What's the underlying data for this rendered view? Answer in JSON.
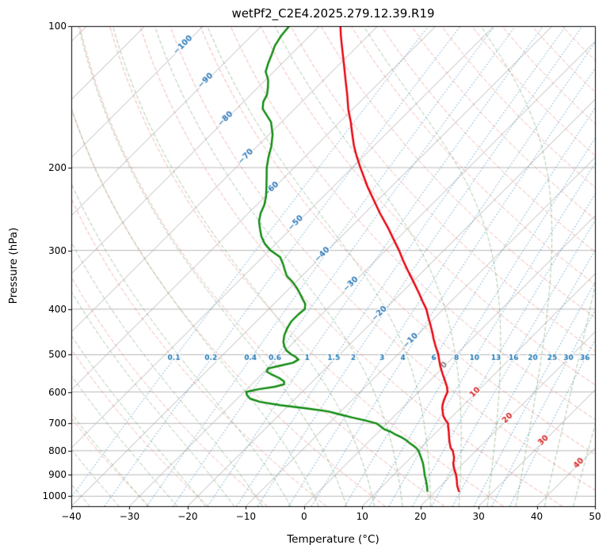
{
  "chart_data": {
    "type": "line",
    "subtype": "skew-t-log-p-sounding",
    "title": "wetPf2_C2E4.2025.279.12.39.R19",
    "xlabel": "Temperature (°C)",
    "ylabel": "Pressure (hPa)",
    "xlim": [
      -40,
      50
    ],
    "plim": [
      100,
      1050
    ],
    "grid": true,
    "x_tick_values": [
      -40,
      -30,
      -20,
      -10,
      0,
      10,
      20,
      30,
      40,
      50
    ],
    "x_tick_labels": [
      "−40",
      "−30",
      "−20",
      "−10",
      "0",
      "10",
      "20",
      "30",
      "40",
      "50"
    ],
    "y_tick_values": [
      100,
      200,
      300,
      400,
      500,
      600,
      700,
      800,
      900,
      1000
    ],
    "y_tick_labels": [
      "100",
      "200",
      "300",
      "400",
      "500",
      "600",
      "700",
      "800",
      "900",
      "1000"
    ],
    "isotherms": {
      "start": -120,
      "end": 50,
      "step": 10
    },
    "isotherm_labels": [
      {
        "value": -100,
        "text": "−100"
      },
      {
        "value": -90,
        "text": "−90"
      },
      {
        "value": -80,
        "text": "−80"
      },
      {
        "value": -70,
        "text": "−70"
      },
      {
        "value": -60,
        "text": "−60"
      },
      {
        "value": -50,
        "text": "−50"
      },
      {
        "value": -40,
        "text": "−40"
      },
      {
        "value": -30,
        "text": "−30"
      },
      {
        "value": -20,
        "text": "−20"
      },
      {
        "value": -10,
        "text": "−10"
      },
      {
        "value": 0,
        "text": "0"
      },
      {
        "value": 10,
        "text": "10"
      },
      {
        "value": 20,
        "text": "20"
      },
      {
        "value": 30,
        "text": "30"
      },
      {
        "value": 40,
        "text": "40"
      }
    ],
    "dry_adiabats": {
      "start": -30,
      "end": 180,
      "step": 10
    },
    "moist_adiabats": {
      "start": -40,
      "end": 45,
      "step": 5
    },
    "mixing_ratios": [
      0.1,
      0.2,
      0.4,
      0.6,
      1,
      1.5,
      2,
      3,
      4,
      6,
      8,
      10,
      13,
      16,
      20,
      25,
      30,
      36
    ],
    "mixing_ratio_labels": [
      "0.1",
      "0.2",
      "0.4",
      "0.6",
      "1",
      "1.5",
      "2",
      "3",
      "4",
      "6",
      "8",
      "10",
      "13",
      "16",
      "20",
      "25",
      "30",
      "36"
    ],
    "colors": {
      "temperature": "#e8000b",
      "dewpoint": "#0e8a0e",
      "grid": "#b0b0b0",
      "dry_adiabat": "rgba(229,108,97,0.5)",
      "moist_adiabat": "rgba(84,150,84,0.5)",
      "mixing_line": "rgba(31,119,180,0.75)",
      "isotherm_label_neg": "#2f7ab8",
      "isotherm_label_zero": "#808080",
      "isotherm_label_pos": "#d62728",
      "axis": "#000000"
    },
    "series": [
      {
        "name": "temperature",
        "units": {
          "pressure": "hPa",
          "temperature": "°C"
        },
        "points": [
          [
            975,
            24
          ],
          [
            950,
            22.8
          ],
          [
            925,
            21.8
          ],
          [
            900,
            20.7
          ],
          [
            875,
            19.4
          ],
          [
            850,
            18.2
          ],
          [
            840,
            17.9
          ],
          [
            825,
            17.3
          ],
          [
            800,
            16
          ],
          [
            790,
            15.2
          ],
          [
            775,
            14.4
          ],
          [
            760,
            13.6
          ],
          [
            750,
            13.1
          ],
          [
            730,
            12.1
          ],
          [
            710,
            11
          ],
          [
            700,
            10.5
          ],
          [
            690,
            9.6
          ],
          [
            675,
            8.4
          ],
          [
            660,
            7.5
          ],
          [
            650,
            6.9
          ],
          [
            640,
            6.4
          ],
          [
            625,
            5.8
          ],
          [
            610,
            5.3
          ],
          [
            600,
            5
          ],
          [
            585,
            4
          ],
          [
            570,
            2.8
          ],
          [
            550,
            1.1
          ],
          [
            530,
            -0.6
          ],
          [
            515,
            -1.8
          ],
          [
            500,
            -3
          ],
          [
            480,
            -4.9
          ],
          [
            460,
            -6.8
          ],
          [
            450,
            -7.7
          ],
          [
            430,
            -9.7
          ],
          [
            415,
            -11.3
          ],
          [
            400,
            -12.9
          ],
          [
            385,
            -14.9
          ],
          [
            370,
            -16.9
          ],
          [
            350,
            -19.8
          ],
          [
            330,
            -22.9
          ],
          [
            315,
            -25.3
          ],
          [
            300,
            -27.7
          ],
          [
            285,
            -30.4
          ],
          [
            270,
            -33.2
          ],
          [
            250,
            -37.4
          ],
          [
            235,
            -40.6
          ],
          [
            220,
            -44
          ],
          [
            200,
            -48.6
          ],
          [
            190,
            -51
          ],
          [
            180,
            -53.4
          ],
          [
            170,
            -55.7
          ],
          [
            160,
            -58.1
          ],
          [
            150,
            -60.8
          ],
          [
            140,
            -63.4
          ],
          [
            130,
            -66.3
          ],
          [
            120,
            -69.4
          ],
          [
            110,
            -72.8
          ],
          [
            105,
            -74.6
          ],
          [
            100,
            -76.4
          ]
        ]
      },
      {
        "name": "dewpoint",
        "units": {
          "pressure": "hPa",
          "temperature": "°C"
        },
        "points": [
          [
            975,
            18.6
          ],
          [
            950,
            17.6
          ],
          [
            925,
            16.5
          ],
          [
            900,
            15.3
          ],
          [
            875,
            14.2
          ],
          [
            850,
            13
          ],
          [
            825,
            11.6
          ],
          [
            800,
            10.1
          ],
          [
            790,
            9.3
          ],
          [
            780,
            8.3
          ],
          [
            770,
            7.2
          ],
          [
            760,
            6.2
          ],
          [
            750,
            5
          ],
          [
            740,
            3.5
          ],
          [
            730,
            2.2
          ],
          [
            720,
            0.5
          ],
          [
            710,
            -0.6
          ],
          [
            700,
            -1.8
          ],
          [
            690,
            -4.2
          ],
          [
            680,
            -7
          ],
          [
            670,
            -9.6
          ],
          [
            660,
            -12.2
          ],
          [
            650,
            -16.5
          ],
          [
            640,
            -21.5
          ],
          [
            630,
            -25.5
          ],
          [
            620,
            -27.8
          ],
          [
            610,
            -28.9
          ],
          [
            600,
            -29.6
          ],
          [
            592,
            -28
          ],
          [
            585,
            -25.6
          ],
          [
            578,
            -24.4
          ],
          [
            570,
            -24.9
          ],
          [
            560,
            -26.4
          ],
          [
            550,
            -28.4
          ],
          [
            543,
            -29.6
          ],
          [
            535,
            -29.9
          ],
          [
            528,
            -28.4
          ],
          [
            520,
            -26.6
          ],
          [
            512,
            -26.2
          ],
          [
            505,
            -27.2
          ],
          [
            500,
            -28.2
          ],
          [
            490,
            -29.8
          ],
          [
            480,
            -30.9
          ],
          [
            470,
            -31.8
          ],
          [
            455,
            -32.8
          ],
          [
            440,
            -33.5
          ],
          [
            425,
            -34
          ],
          [
            410,
            -34
          ],
          [
            400,
            -33.8
          ],
          [
            390,
            -34.6
          ],
          [
            380,
            -36
          ],
          [
            370,
            -37.4
          ],
          [
            360,
            -38.9
          ],
          [
            350,
            -40.6
          ],
          [
            340,
            -42.6
          ],
          [
            330,
            -44
          ],
          [
            320,
            -45.4
          ],
          [
            310,
            -47
          ],
          [
            300,
            -49.8
          ],
          [
            290,
            -52
          ],
          [
            280,
            -53.8
          ],
          [
            270,
            -55.3
          ],
          [
            260,
            -56.8
          ],
          [
            250,
            -57.9
          ],
          [
            240,
            -58.7
          ],
          [
            230,
            -59.9
          ],
          [
            220,
            -61.4
          ],
          [
            210,
            -63
          ],
          [
            200,
            -64.7
          ],
          [
            190,
            -66.2
          ],
          [
            180,
            -67.6
          ],
          [
            170,
            -69.4
          ],
          [
            160,
            -71.8
          ],
          [
            150,
            -75.5
          ],
          [
            145,
            -76.6
          ],
          [
            140,
            -77.2
          ],
          [
            135,
            -78.3
          ],
          [
            130,
            -79.6
          ],
          [
            125,
            -81.4
          ],
          [
            120,
            -82.4
          ],
          [
            115,
            -83.3
          ],
          [
            110,
            -84.3
          ],
          [
            105,
            -84.9
          ],
          [
            100,
            -85.2
          ]
        ]
      }
    ]
  }
}
